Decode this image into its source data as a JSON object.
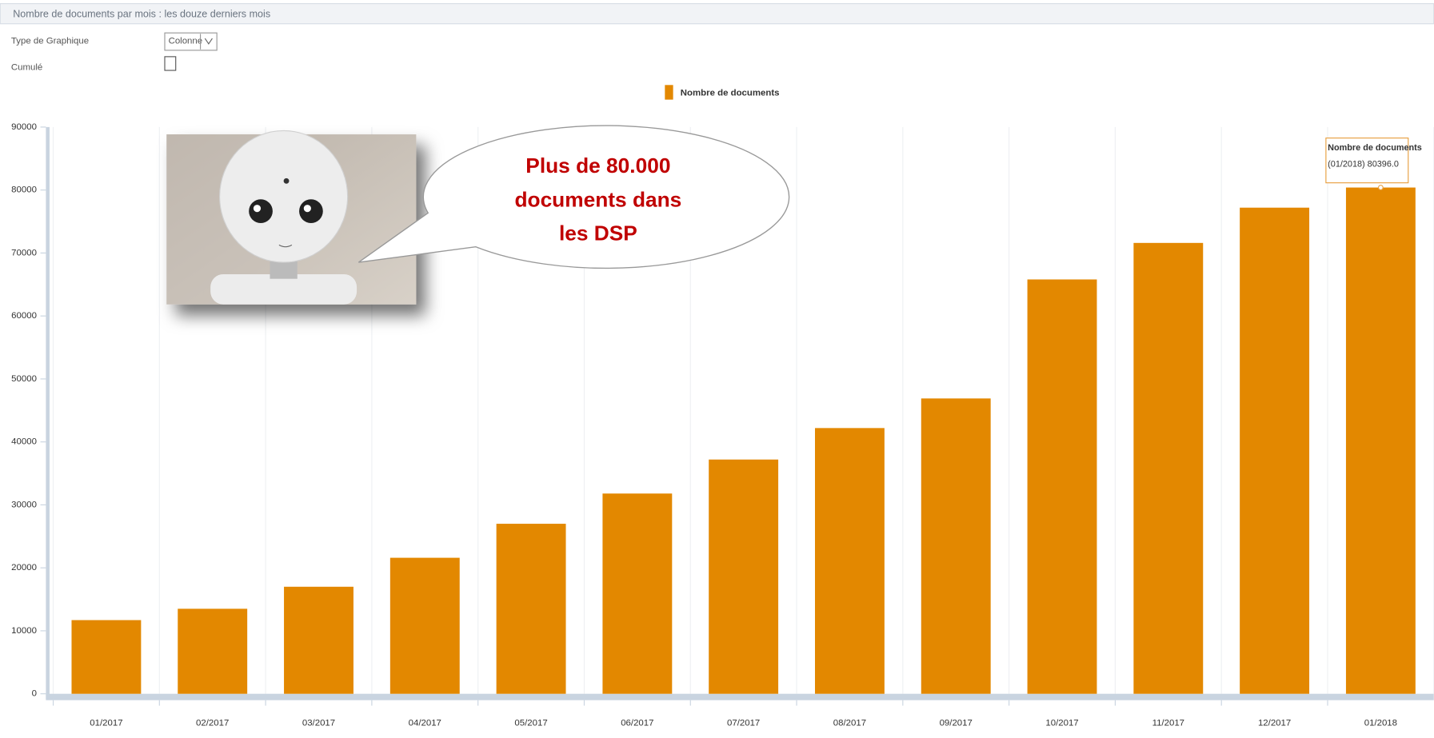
{
  "panel_title": "Nombre de documents par mois : les douze derniers mois",
  "controls": {
    "chart_type_label": "Type de Graphique",
    "chart_type_value": "Colonne",
    "cumulative_label": "Cumulé"
  },
  "callout": {
    "lines": [
      "Plus de 80.000",
      "documents dans",
      "les DSP"
    ]
  },
  "tooltip": {
    "title": "Nombre de documents",
    "text": "(01/2018) 80396.0"
  },
  "chart_data": {
    "type": "bar",
    "categories": [
      "01/2017",
      "02/2017",
      "03/2017",
      "04/2017",
      "05/2017",
      "06/2017",
      "07/2017",
      "08/2017",
      "09/2017",
      "10/2017",
      "11/2017",
      "12/2017",
      "01/2018"
    ],
    "series": [
      {
        "name": "Nombre de documents",
        "color": "#e38800",
        "values": [
          11700,
          13500,
          17000,
          21600,
          27000,
          31800,
          37200,
          42200,
          46900,
          65800,
          71600,
          77200,
          80396
        ]
      }
    ],
    "ylim": [
      0,
      90000
    ],
    "yticks": [
      0,
      10000,
      20000,
      30000,
      40000,
      50000,
      60000,
      70000,
      80000,
      90000
    ],
    "grid": false,
    "legend": "top"
  }
}
